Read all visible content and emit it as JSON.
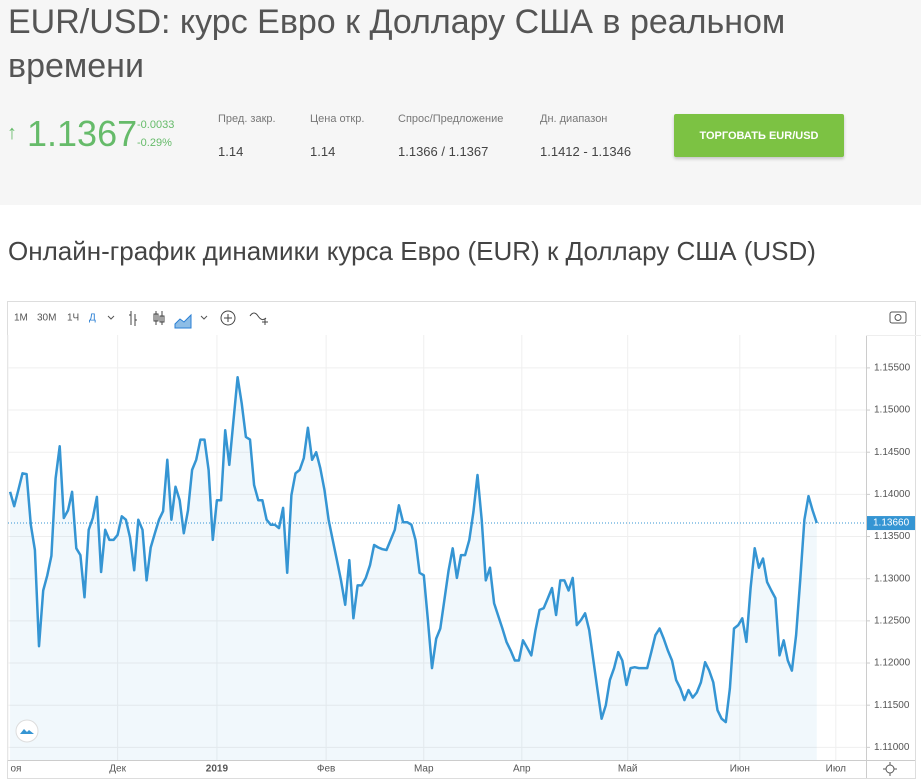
{
  "header": {
    "title": "EUR/USD: курс Евро к Доллару США в реальном времени",
    "price": "1.1367",
    "change": "-0.0033",
    "change_percent": "-0.29%",
    "stats": [
      {
        "label": "Пред. закр.",
        "value": "1.14"
      },
      {
        "label": "Цена откр.",
        "value": "1.14"
      },
      {
        "label": "Спрос/Предложение",
        "value": "1.1366 / 1.1367"
      },
      {
        "label": "Дн. диапазон",
        "value": "1.1412 - 1.1346"
      }
    ],
    "button": "ТОРГОВАТЬ EUR/USD"
  },
  "subtitle": "Онлайн-график динамики курса Евро (EUR) к Доллару США (USD)",
  "toolbar": [
    "1М",
    "30М",
    "1Ч",
    "Д"
  ],
  "chart_data": {
    "type": "line",
    "series": [
      {
        "name": "EUR/USD",
        "color": "#3595d3",
        "values": [
          1.1403,
          1.1386,
          1.1405,
          1.1425,
          1.1424,
          1.1364,
          1.1334,
          1.122,
          1.1286,
          1.1304,
          1.1327,
          1.1419,
          1.1457,
          1.1372,
          1.1381,
          1.1403,
          1.1336,
          1.1328,
          1.1278,
          1.1358,
          1.1372,
          1.1397,
          1.1308,
          1.1358,
          1.1346,
          1.1346,
          1.1352,
          1.1374,
          1.137,
          1.1349,
          1.131,
          1.137,
          1.1358,
          1.1298,
          1.1337,
          1.1354,
          1.137,
          1.138,
          1.1441,
          1.137,
          1.1409,
          1.1393,
          1.1354,
          1.1381,
          1.1429,
          1.1441,
          1.1465,
          1.1465,
          1.1429,
          1.1346,
          1.1393,
          1.1393,
          1.1476,
          1.1435,
          1.1488,
          1.1539,
          1.1508,
          1.1468,
          1.1465,
          1.1411,
          1.1393,
          1.1393,
          1.137,
          1.1364,
          1.1364,
          1.136,
          1.1384,
          1.1307,
          1.1399,
          1.1425,
          1.1429,
          1.1443,
          1.1479,
          1.1441,
          1.145,
          1.1431,
          1.1405,
          1.137,
          1.1346,
          1.1322,
          1.1298,
          1.1269,
          1.1322,
          1.1253,
          1.1292,
          1.1292,
          1.1301,
          1.1316,
          1.134,
          1.1337,
          1.1335,
          1.1334,
          1.1346,
          1.1358,
          1.1387,
          1.1367,
          1.1367,
          1.1364,
          1.1346,
          1.1307,
          1.1304,
          1.1251,
          1.1194,
          1.1229,
          1.1241,
          1.1275,
          1.131,
          1.1336,
          1.1301,
          1.1328,
          1.1328,
          1.1346,
          1.1379,
          1.1423,
          1.137,
          1.1298,
          1.1313,
          1.1271,
          1.1256,
          1.1241,
          1.1225,
          1.1215,
          1.1203,
          1.1203,
          1.1227,
          1.1218,
          1.1209,
          1.1239,
          1.1263,
          1.1265,
          1.1277,
          1.1289,
          1.1257,
          1.1298,
          1.1298,
          1.1286,
          1.1301,
          1.1245,
          1.1251,
          1.1259,
          1.1239,
          1.1203,
          1.1168,
          1.1134,
          1.115,
          1.118,
          1.1194,
          1.1213,
          1.1203,
          1.1174,
          1.1194,
          1.1195,
          1.1194,
          1.1194,
          1.1194,
          1.1213,
          1.1233,
          1.1241,
          1.1229,
          1.1215,
          1.1203,
          1.118,
          1.117,
          1.1156,
          1.1168,
          1.1159,
          1.1165,
          1.1177,
          1.1201,
          1.1191,
          1.1177,
          1.1144,
          1.1134,
          1.113,
          1.117,
          1.1241,
          1.1245,
          1.1253,
          1.1225,
          1.1289,
          1.1336,
          1.1313,
          1.1324,
          1.1296,
          1.1286,
          1.1277,
          1.1209,
          1.1227,
          1.1203,
          1.1191,
          1.1233,
          1.1298,
          1.137,
          1.1398,
          1.1381,
          1.1366
        ]
      }
    ],
    "xlim": [
      -0.5,
      206.9
    ],
    "xticks": [
      {
        "value": -0.5,
        "label": "оя"
      },
      {
        "value": 26,
        "label": "Дек"
      },
      {
        "value": 50,
        "label": "2019"
      },
      {
        "value": 76.4,
        "label": "Фев"
      },
      {
        "value": 100,
        "label": "Мар"
      },
      {
        "value": 123.7,
        "label": "Апр"
      },
      {
        "value": 149.3,
        "label": "Май"
      },
      {
        "value": 176.4,
        "label": "Июн"
      },
      {
        "value": 199.6,
        "label": "Июл"
      }
    ],
    "ylim": [
      1.1085,
      1.1589
    ],
    "yticks": [
      {
        "value": 1.155,
        "label": "1.15500"
      },
      {
        "value": 1.15,
        "label": "1.15000"
      },
      {
        "value": 1.145,
        "label": "1.14500"
      },
      {
        "value": 1.14,
        "label": "1.14000"
      },
      {
        "value": 1.135,
        "label": "1.13500"
      },
      {
        "value": 1.13,
        "label": "1.13000"
      },
      {
        "value": 1.125,
        "label": "1.12500"
      },
      {
        "value": 1.12,
        "label": "1.12000"
      },
      {
        "value": 1.115,
        "label": "1.11500"
      },
      {
        "value": 1.11,
        "label": "1.11000"
      }
    ],
    "last_price": {
      "value": 1.1366,
      "label": "1.13660"
    },
    "grid": true
  }
}
